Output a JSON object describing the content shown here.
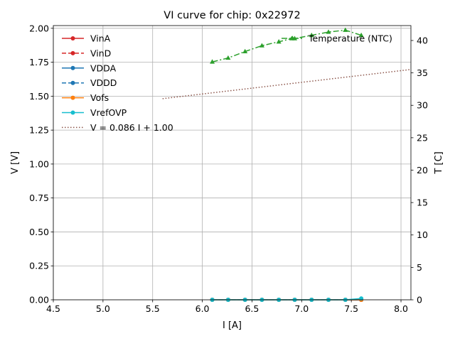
{
  "chart_data": {
    "type": "line",
    "title": "VI curve for chip: 0x22972",
    "xlabel": "I [A]",
    "ylabel": "V [V]",
    "y2label": "T [C]",
    "xlim": [
      4.5,
      8.1
    ],
    "ylim": [
      0,
      2.02
    ],
    "y2lim": [
      0,
      42.3
    ],
    "grid": true,
    "xticks": [
      "4.5",
      "5.0",
      "5.5",
      "6.0",
      "6.5",
      "7.0",
      "7.5",
      "8.0"
    ],
    "yticks": [
      "0.00",
      "0.25",
      "0.50",
      "0.75",
      "1.00",
      "1.25",
      "1.50",
      "1.75",
      "2.00"
    ],
    "y2ticks": [
      "0",
      "5",
      "10",
      "15",
      "20",
      "25",
      "30",
      "35",
      "40"
    ],
    "x": [
      6.1,
      6.26,
      6.43,
      6.6,
      6.77,
      6.93,
      7.1,
      7.27,
      7.44,
      7.6
    ],
    "series": [
      {
        "name": "VinA",
        "color": "#d62728",
        "style": "solid",
        "marker": "circle",
        "values": [
          0.0,
          0.0,
          0.0,
          0.0,
          0.0,
          0.0,
          0.0,
          0.0,
          0.0,
          0.0
        ]
      },
      {
        "name": "VinD",
        "color": "#d62728",
        "style": "dashed",
        "marker": "circle",
        "values": [
          0.0,
          0.0,
          0.0,
          0.0,
          0.0,
          0.0,
          0.0,
          0.0,
          0.0,
          0.0
        ]
      },
      {
        "name": "VDDA",
        "color": "#1f77b4",
        "style": "solid",
        "marker": "circle",
        "values": [
          0.0,
          0.0,
          0.0,
          0.0,
          0.0,
          0.0,
          0.0,
          0.0,
          0.0,
          0.0
        ]
      },
      {
        "name": "VDDD",
        "color": "#1f77b4",
        "style": "dashed",
        "marker": "circle",
        "values": [
          0.0,
          0.0,
          0.0,
          0.0,
          0.0,
          0.0,
          0.0,
          0.0,
          0.0,
          0.0
        ]
      },
      {
        "name": "Vofs",
        "color": "#ff7f0e",
        "style": "solid",
        "marker": "circle",
        "values": [
          0.0,
          0.0,
          0.0,
          0.0,
          0.0,
          0.0,
          0.0,
          0.0,
          0.0,
          0.0
        ]
      },
      {
        "name": "VrefOVP",
        "color": "#17becf",
        "style": "solid",
        "marker": "circle",
        "values": [
          0.0,
          0.0,
          0.0,
          0.0,
          0.0,
          0.0,
          0.0,
          0.0,
          0.0,
          0.01
        ]
      }
    ],
    "fit": {
      "name": "V = 0.086 I + 1.00",
      "color": "#8c564b",
      "style": "dotted",
      "slope": 0.086,
      "x_range": [
        5.6,
        8.1
      ]
    },
    "temperature": {
      "name": "Temperature (NTC)",
      "color": "#2ca02c",
      "style": "dashdot",
      "marker": "triangle",
      "axis": "right",
      "x": [
        6.1,
        6.26,
        6.43,
        6.6,
        6.77,
        6.9,
        6.93,
        7.1,
        7.27,
        7.44,
        7.6
      ],
      "values": [
        36.7,
        37.3,
        38.3,
        39.2,
        39.8,
        40.3,
        40.3,
        40.8,
        41.3,
        41.6,
        40.8
      ]
    }
  }
}
